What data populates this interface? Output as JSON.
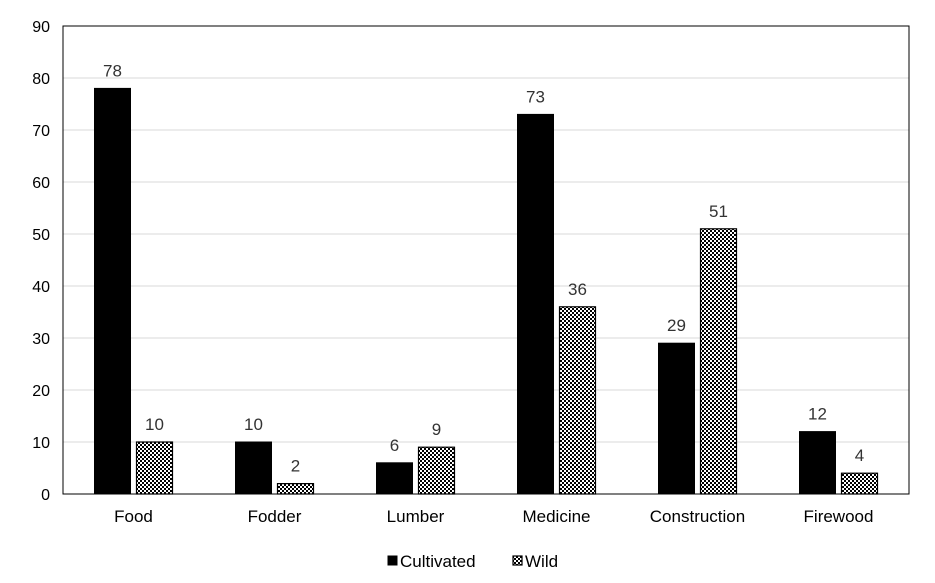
{
  "chart_data": {
    "type": "bar",
    "categories": [
      "Food",
      "Fodder",
      "Lumber",
      "Medicine",
      "Construction",
      "Firewood"
    ],
    "series": [
      {
        "name": "Cultivated",
        "values": [
          78,
          10,
          6,
          73,
          29,
          12
        ],
        "color": "#000000",
        "pattern": "solid"
      },
      {
        "name": "Wild",
        "values": [
          10,
          2,
          9,
          36,
          51,
          4
        ],
        "color": "#000000",
        "pattern": "checker"
      }
    ],
    "ylim": [
      0,
      90
    ],
    "yticks": [
      0,
      10,
      20,
      30,
      40,
      50,
      60,
      70,
      80,
      90
    ],
    "grid": true,
    "legend": "bottom",
    "title": "",
    "xlabel": "",
    "ylabel": ""
  }
}
